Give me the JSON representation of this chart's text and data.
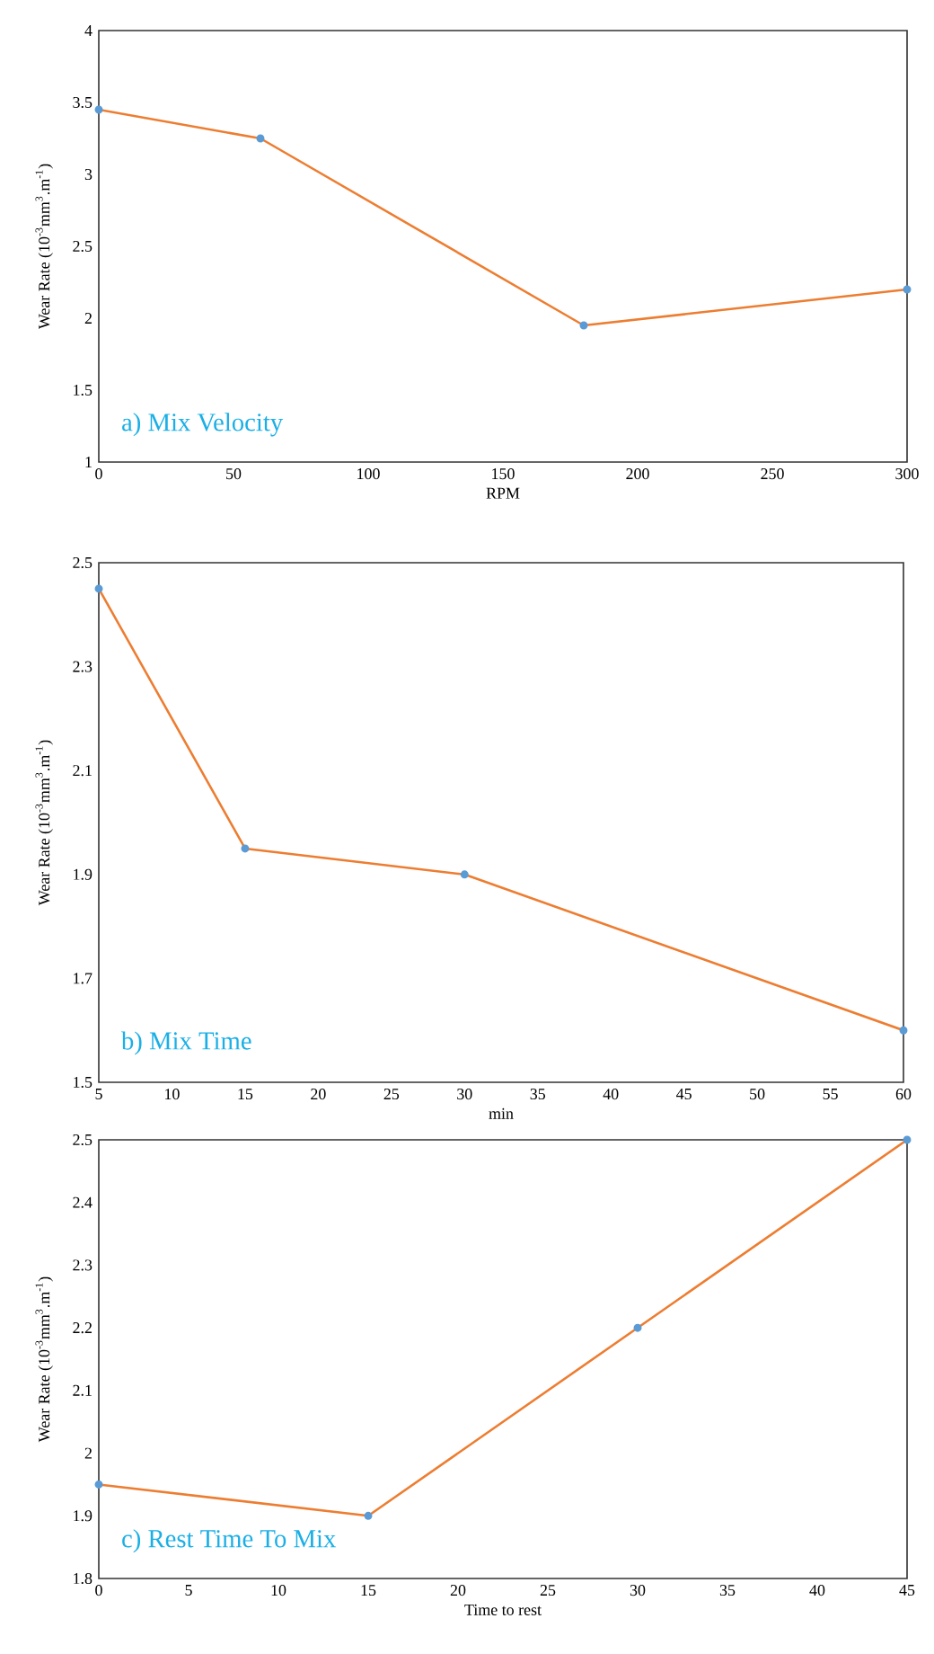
{
  "chart_data": [
    {
      "type": "line",
      "title": "a) Mix Velocity",
      "xlabel": "RPM",
      "ylabel": "Wear Rate (10$^{-3}$mm$^{3}$.m$^{-1}$)",
      "x": [
        0,
        60,
        180,
        300
      ],
      "values": [
        3.45,
        3.25,
        1.95,
        2.2
      ],
      "color": "#ed7d31",
      "marker": "circle",
      "xlim": [
        0,
        300
      ],
      "ylim": [
        1,
        4
      ],
      "xticks": [
        0,
        50,
        100,
        150,
        200,
        250,
        300
      ],
      "yticks": [
        1,
        1.5,
        2,
        2.5,
        3,
        3.5,
        4
      ]
    },
    {
      "type": "line",
      "title": "b) Mix Time",
      "xlabel": "min",
      "ylabel": "Wear Rate (10$^{-3}$mm$^{3}$.m$^{-1}$)",
      "x": [
        5,
        15,
        30,
        60
      ],
      "values": [
        2.45,
        1.95,
        1.9,
        1.6
      ],
      "color": "#ed7d31",
      "marker": "circle",
      "xlim": [
        5,
        60
      ],
      "ylim": [
        1.5,
        2.5
      ],
      "xticks": [
        5,
        10,
        15,
        20,
        25,
        30,
        35,
        40,
        45,
        50,
        55,
        60
      ],
      "yticks": [
        1.5,
        1.7,
        1.9,
        2.1,
        2.3,
        2.5
      ]
    },
    {
      "type": "line",
      "title": "c) Rest Time To Mix",
      "xlabel": "Time to rest",
      "ylabel": "Wear Rate (10$^{-3}$mm$^{3}$.m$^{-1}$)",
      "x": [
        0,
        15,
        30,
        45
      ],
      "values": [
        1.95,
        1.9,
        2.2,
        2.5
      ],
      "color": "#ed7d31",
      "marker": "circle",
      "xlim": [
        0,
        45
      ],
      "ylim": [
        1.8,
        2.5
      ],
      "xticks": [
        0,
        5,
        10,
        15,
        20,
        25,
        30,
        35,
        40,
        45
      ],
      "yticks": [
        1.8,
        1.9,
        2,
        2.1,
        2.2,
        2.3,
        2.4,
        2.5
      ]
    }
  ]
}
